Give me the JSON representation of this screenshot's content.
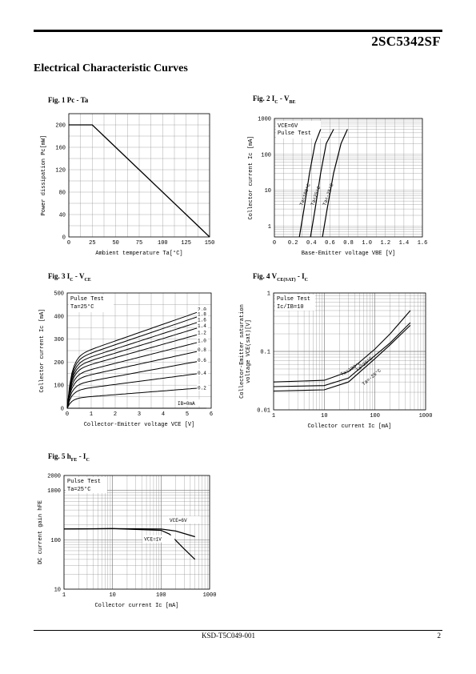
{
  "header": {
    "part_number": "2SC5342SF"
  },
  "section_title": "Electrical Characteristic Curves",
  "figures": {
    "fig1": {
      "label": "Fig. 1 Pc - Ta"
    },
    "fig2": {
      "label_pre": "Fig. 2 I",
      "label_sub1": "C",
      "label_mid": " - V",
      "label_sub2": "BE"
    },
    "fig3": {
      "label_pre": "Fig. 3 I",
      "label_sub1": "C",
      "label_mid": " - V",
      "label_sub2": "CE"
    },
    "fig4": {
      "label_pre": "Fig. 4 V",
      "label_sub1": "CE(SAT)",
      "label_mid": " - I",
      "label_sub2": "C"
    },
    "fig5": {
      "label_pre": "Fig. 5 h",
      "label_sub1": "FE",
      "label_mid": " - I",
      "label_sub2": "C"
    }
  },
  "chart_data": [
    {
      "id": "fig1",
      "type": "line",
      "xlabel": "Ambient temperature Ta[°C]",
      "ylabel": "Power dissipation Pc[mW]",
      "xlim": [
        0,
        150
      ],
      "ylim": [
        0,
        220
      ],
      "xticks": [
        0,
        25,
        50,
        75,
        100,
        125,
        150
      ],
      "yticks": [
        0,
        40,
        80,
        120,
        160,
        200
      ],
      "grid": true,
      "series": [
        {
          "x": [
            0,
            25,
            150
          ],
          "y": [
            200,
            200,
            0
          ]
        }
      ]
    },
    {
      "id": "fig2",
      "type": "line",
      "xlabel": "Base-Emitter voltage VBE [V]",
      "ylabel": "Collector current Ic [mA]",
      "xlim": [
        0,
        1.6
      ],
      "ylim": [
        0.5,
        1000
      ],
      "yscale": "log",
      "xticks": [
        "0",
        "0.2",
        "0.4",
        "0.6",
        "0.8",
        "1.0",
        "1.2",
        "1.4",
        "1.6"
      ],
      "yticks": [
        "1",
        "10",
        "100",
        "1000"
      ],
      "annotations": [
        "VCE=6V",
        "Pulse Test"
      ],
      "series": [
        {
          "name": "Ta=100°C",
          "x": [
            0.27,
            0.32,
            0.38,
            0.44,
            0.5
          ],
          "y": [
            0.5,
            3,
            30,
            200,
            500
          ]
        },
        {
          "name": "Ta=25°C",
          "x": [
            0.39,
            0.44,
            0.5,
            0.56,
            0.64
          ],
          "y": [
            0.5,
            3,
            30,
            200,
            500
          ]
        },
        {
          "name": "Ta=-25°C",
          "x": [
            0.52,
            0.57,
            0.64,
            0.72,
            0.79
          ],
          "y": [
            0.5,
            3,
            30,
            200,
            500
          ]
        }
      ]
    },
    {
      "id": "fig3",
      "type": "line",
      "xlabel": "Collector-Emitter voltage VCE [V]",
      "ylabel": "Collector current Ic [mA]",
      "xlim": [
        0,
        6
      ],
      "ylim": [
        0,
        500
      ],
      "xticks": [
        0,
        1,
        2,
        3,
        4,
        5,
        6
      ],
      "yticks": [
        0,
        100,
        200,
        300,
        400,
        500
      ],
      "annotations": [
        "Pulse Test",
        "Ta=25°C"
      ],
      "series": [
        {
          "name": "2.0",
          "sat": 230,
          "end": 430
        },
        {
          "name": "1.8",
          "sat": 215,
          "end": 410
        },
        {
          "name": "1.6",
          "sat": 200,
          "end": 385
        },
        {
          "name": "1.4",
          "sat": 185,
          "end": 360
        },
        {
          "name": "1.2",
          "sat": 170,
          "end": 330
        },
        {
          "name": "1.0",
          "sat": 150,
          "end": 295
        },
        {
          "name": "0.8",
          "sat": 130,
          "end": 255
        },
        {
          "name": "0.6",
          "sat": 105,
          "end": 210
        },
        {
          "name": "0.4",
          "sat": 80,
          "end": 155
        },
        {
          "name": "0.2",
          "sat": 45,
          "end": 90
        },
        {
          "name": "IB=0mA",
          "sat": 0,
          "end": 0
        }
      ],
      "ib_label": "IB=0mA"
    },
    {
      "id": "fig4",
      "type": "line",
      "xlabel": "Collector current Ic [mA]",
      "ylabel": "Collector-Emitter saturation voltage VCE(sat)[V]",
      "xlim": [
        1,
        1000
      ],
      "ylim": [
        0.01,
        1
      ],
      "xscale": "log",
      "yscale": "log",
      "xticks": [
        "1",
        "10",
        "100",
        "1000"
      ],
      "yticks": [
        "0.01",
        "0.1",
        "1"
      ],
      "annotations": [
        "Pulse Test",
        "Ic/IB=10"
      ],
      "series": [
        {
          "name": "Ta=100°C",
          "x": [
            1,
            10,
            30,
            100,
            200,
            500
          ],
          "y": [
            0.03,
            0.032,
            0.045,
            0.11,
            0.2,
            0.5
          ]
        },
        {
          "name": "Ta=25°C",
          "x": [
            1,
            10,
            30,
            100,
            200,
            500
          ],
          "y": [
            0.025,
            0.026,
            0.035,
            0.085,
            0.14,
            0.31
          ]
        },
        {
          "name": "Ta=-25°C",
          "x": [
            1,
            10,
            30,
            100,
            200,
            500
          ],
          "y": [
            0.021,
            0.022,
            0.03,
            0.075,
            0.13,
            0.28
          ]
        }
      ]
    },
    {
      "id": "fig5",
      "type": "line",
      "xlabel": "Collector current Ic [mA]",
      "ylabel": "DC current gain hFE",
      "xlim": [
        1,
        1000
      ],
      "ylim": [
        10,
        2000
      ],
      "xscale": "log",
      "yscale": "log",
      "xticks": [
        "1",
        "10",
        "100",
        "1000"
      ],
      "yticks": [
        "10",
        "100",
        "1000",
        "2000"
      ],
      "annotations": [
        "Pulse Test",
        "Ta=25°C"
      ],
      "series": [
        {
          "name": "VCE=6V",
          "x": [
            1,
            10,
            100,
            200,
            500
          ],
          "y": [
            165,
            168,
            165,
            150,
            115
          ]
        },
        {
          "name": "VCE=1V",
          "x": [
            1,
            10,
            100,
            150,
            300,
            500
          ],
          "y": [
            165,
            168,
            155,
            130,
            65,
            40
          ]
        }
      ]
    }
  ],
  "footer": {
    "doc_number": "KSD-T5C049-001",
    "page": "2"
  }
}
